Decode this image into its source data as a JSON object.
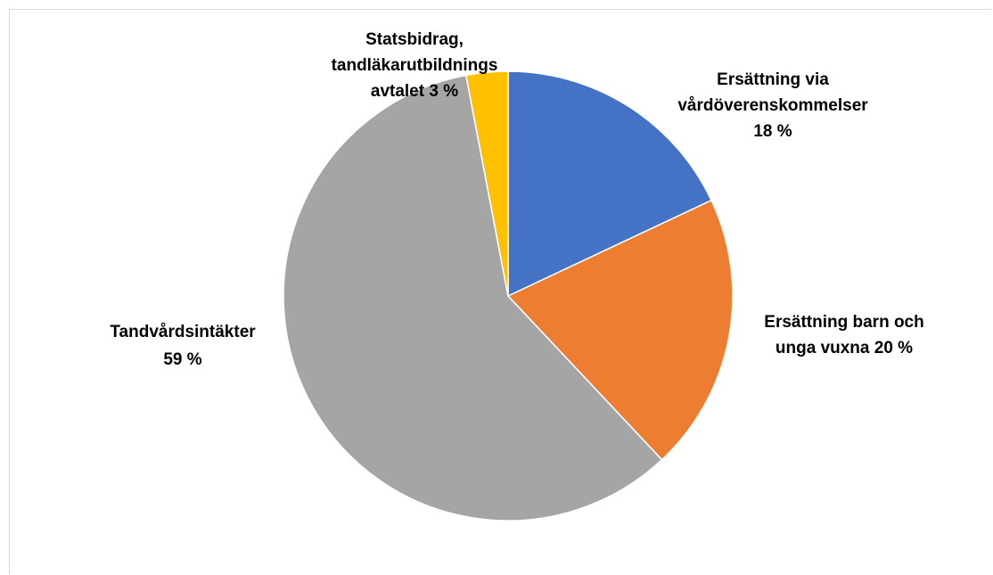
{
  "chart_data": {
    "type": "pie",
    "title": "",
    "start_angle_deg": 0,
    "direction": "clockwise",
    "legend": "none",
    "slices": [
      {
        "name": "Ersättning via vårdöverenskommelser",
        "value": 18,
        "color": "#4472C4",
        "label_lines": [
          "Ersättning via",
          "vårdöverenskommelser",
          "18 %"
        ]
      },
      {
        "name": "Ersättning barn och unga vuxna",
        "value": 20,
        "color": "#ED7D31",
        "label_lines": [
          "Ersättning barn och",
          "unga vuxna 20 %"
        ]
      },
      {
        "name": "Tandvårdsintäkter",
        "value": 59,
        "color": "#A5A5A5",
        "label_lines": [
          "Tandvårdsintäkter",
          "59 %"
        ]
      },
      {
        "name": "Statsbidrag, tandläkarutbildningsavtalet",
        "value": 3,
        "color": "#FFC000",
        "label_lines": [
          "Statsbidrag,",
          "tandläkarutbildnings",
          "avtalet 3 %"
        ]
      }
    ]
  }
}
